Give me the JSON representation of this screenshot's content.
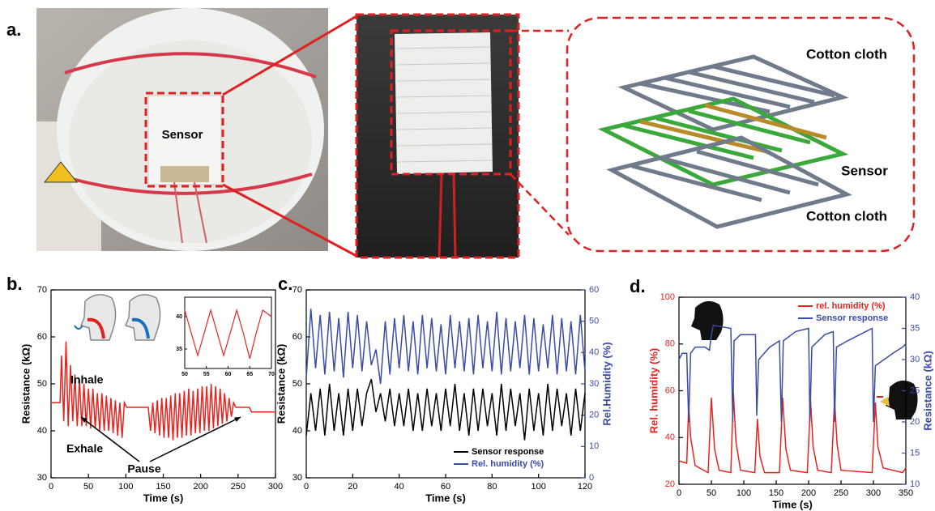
{
  "panel_a": {
    "label": "a.",
    "photo_label": "Sensor",
    "layers": [
      "Cotton cloth",
      "Sensor",
      "Cotton cloth"
    ]
  },
  "chart_data": [
    {
      "type": "line",
      "panel_label": "b.",
      "x_label": "Time (s)",
      "y_label": "Resistance (kΩ)",
      "color": "#e8231f",
      "annotations": [
        "Inhale",
        "Exhale",
        "Pause"
      ],
      "xlim": [
        0,
        300
      ],
      "xticks": [
        0,
        50,
        100,
        150,
        200,
        250,
        300
      ],
      "ylim": [
        30,
        70
      ],
      "yticks": [
        30,
        40,
        50,
        60,
        70
      ],
      "x": [
        0,
        12,
        14,
        17,
        20,
        23,
        26,
        29,
        32,
        35,
        38,
        41,
        44,
        47,
        50,
        53,
        56,
        59,
        62,
        65,
        68,
        71,
        74,
        77,
        80,
        83,
        86,
        89,
        92,
        95,
        98,
        101,
        130,
        133,
        136,
        139,
        142,
        145,
        148,
        151,
        154,
        157,
        160,
        163,
        166,
        169,
        172,
        175,
        178,
        181,
        184,
        187,
        190,
        193,
        196,
        199,
        202,
        205,
        208,
        211,
        214,
        217,
        220,
        223,
        226,
        229,
        232,
        235,
        238,
        241,
        244,
        247,
        265,
        268,
        300
      ],
      "values": [
        46,
        46,
        56,
        42,
        59,
        41,
        54,
        42,
        52,
        41,
        51,
        41,
        50,
        41,
        49,
        40.5,
        49,
        40.5,
        48,
        40,
        48,
        40,
        47.5,
        40,
        47,
        39.5,
        46.5,
        39,
        46,
        38.5,
        46,
        45,
        45,
        40,
        46,
        39.5,
        46.5,
        39,
        47,
        38.5,
        47,
        38.5,
        47.5,
        38,
        48,
        38.5,
        48,
        38.5,
        48.5,
        39,
        49,
        39,
        48.5,
        39.5,
        49,
        39.5,
        49.5,
        40,
        49.5,
        40,
        50,
        40.5,
        49.5,
        41,
        49,
        41.5,
        48,
        42,
        47,
        43,
        46,
        45,
        45,
        44,
        44
      ],
      "inset": {
        "xlim": [
          50,
          70
        ],
        "xticks": [
          50,
          55,
          60,
          65,
          70
        ],
        "ylim": [
          32,
          43
        ],
        "yticks": [
          35,
          40
        ],
        "x": [
          50,
          51.5,
          53,
          54.5,
          56,
          57.5,
          59,
          60.5,
          62,
          63.5,
          65,
          66.5,
          68,
          70
        ],
        "values": [
          41,
          37.5,
          34,
          37.5,
          41,
          37.5,
          34,
          37.5,
          41,
          37.5,
          33.5,
          37.5,
          41,
          40
        ]
      }
    },
    {
      "type": "line",
      "panel_label": "c.",
      "x_label": "Time (s)",
      "y_label": "Resistance (kΩ)",
      "y2_label": "Rel.Humidity (%)",
      "xlim": [
        0,
        120
      ],
      "xticks": [
        0,
        20,
        40,
        60,
        80,
        100,
        120
      ],
      "ylim": [
        30,
        70
      ],
      "yticks": [
        30,
        40,
        50,
        60,
        70
      ],
      "y2lim": [
        0,
        60
      ],
      "y2ticks": [
        0,
        10,
        20,
        30,
        40,
        50,
        60
      ],
      "x": [
        0,
        2,
        4,
        6,
        8,
        10,
        12,
        14,
        16,
        18,
        20,
        22,
        24,
        26,
        28,
        30,
        32,
        34,
        36,
        38,
        40,
        42,
        44,
        46,
        48,
        50,
        52,
        54,
        56,
        58,
        60,
        62,
        64,
        66,
        68,
        70,
        72,
        74,
        76,
        78,
        80,
        82,
        84,
        86,
        88,
        90,
        92,
        94,
        96,
        98,
        100,
        102,
        104,
        106,
        108,
        110,
        112,
        114,
        116,
        118,
        120
      ],
      "series": [
        {
          "name": "Sensor response",
          "color": "#000000",
          "values": [
            39,
            48,
            40,
            49,
            39,
            50,
            40,
            48,
            39,
            49,
            40,
            49,
            41,
            48,
            51,
            44,
            48,
            42,
            49,
            41,
            48,
            41,
            49,
            40,
            48,
            40,
            49,
            41,
            48,
            40,
            49,
            41,
            50,
            40,
            48,
            39,
            49,
            40,
            49,
            41,
            48,
            39,
            50,
            40,
            49,
            41,
            48,
            38,
            49,
            40,
            48,
            39,
            50,
            40,
            49,
            41,
            48,
            39,
            49,
            40,
            48
          ]
        },
        {
          "name": "Rel. humidity (%)",
          "color": "#3a4ba8",
          "axis": "y2",
          "values": [
            32,
            54,
            35,
            52,
            33,
            53,
            34,
            51,
            32,
            53,
            35,
            52,
            34,
            50,
            36,
            41,
            30,
            50,
            33,
            51,
            35,
            52,
            34,
            50,
            33,
            52,
            35,
            51,
            34,
            49,
            33,
            52,
            35,
            50,
            34,
            51,
            33,
            52,
            35,
            50,
            34,
            53,
            33,
            51,
            34,
            50,
            35,
            52,
            33,
            51,
            34,
            49,
            35,
            52,
            33,
            51,
            34,
            50,
            33,
            52,
            34
          ]
        }
      ]
    },
    {
      "type": "line",
      "panel_label": "d.",
      "x_label": "Time (s)",
      "y_label": "Rel. humidity (%)",
      "y2_label": "Resistance (kΩ)",
      "xlim": [
        0,
        350
      ],
      "xticks": [
        0,
        50,
        100,
        150,
        200,
        250,
        300,
        350
      ],
      "ylim": [
        20,
        100
      ],
      "yticks": [
        20,
        40,
        60,
        80,
        100
      ],
      "y2lim": [
        10,
        40
      ],
      "y2ticks": [
        10,
        15,
        20,
        25,
        30,
        35,
        40
      ],
      "series": [
        {
          "name": "rel. humidity (%)",
          "color": "#e8231f",
          "x": [
            0,
            12,
            15,
            18,
            25,
            45,
            50,
            55,
            62,
            80,
            84,
            88,
            95,
            117,
            121,
            125,
            132,
            155,
            160,
            165,
            172,
            198,
            203,
            207,
            214,
            235,
            240,
            244,
            250,
            298,
            303,
            307,
            315,
            345,
            350
          ],
          "values": [
            30,
            29,
            54,
            40,
            28,
            25,
            57,
            35,
            26,
            25,
            59,
            38,
            26,
            25,
            48,
            32,
            25,
            25,
            57,
            35,
            26,
            25,
            56,
            36,
            26,
            25,
            56,
            37,
            26,
            25,
            55,
            36,
            27,
            25,
            27
          ]
        },
        {
          "name": "Sensor response",
          "color": "#3a4ba8",
          "axis": "y2",
          "x": [
            0,
            5,
            12,
            15,
            18,
            25,
            40,
            47,
            50,
            53,
            80,
            83,
            85,
            95,
            118,
            120,
            123,
            140,
            155,
            158,
            161,
            180,
            200,
            202,
            205,
            225,
            238,
            240,
            243,
            260,
            298,
            300,
            303,
            330,
            345,
            350
          ],
          "values": [
            30,
            31,
            31,
            20,
            31,
            32,
            32,
            31.5,
            34,
            35.5,
            35,
            20,
            33,
            34,
            34,
            21,
            30,
            32,
            33,
            20,
            33,
            34.5,
            35,
            20,
            32,
            34,
            34.5,
            20,
            32,
            33,
            35,
            20,
            29,
            31,
            32,
            32.5
          ]
        }
      ]
    }
  ]
}
